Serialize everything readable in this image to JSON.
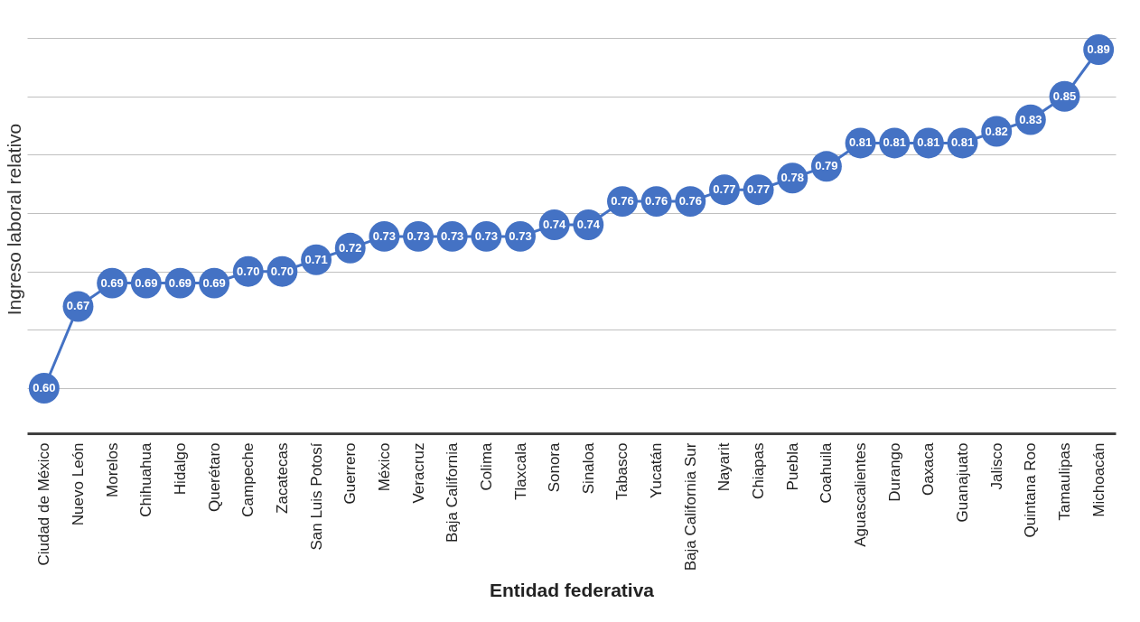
{
  "chart_data": {
    "type": "line",
    "xlabel": "Entidad federativa",
    "ylabel": "Ingreso laboral relativo",
    "categories": [
      "Ciudad de México",
      "Nuevo León",
      "Morelos",
      "Chihuahua",
      "Hidalgo",
      "Querétaro",
      "Campeche",
      "Zacatecas",
      "San Luis Potosí",
      "Guerrero",
      "México",
      "Veracruz",
      "Baja California",
      "Colima",
      "Tlaxcala",
      "Sonora",
      "Sinaloa",
      "Tabasco",
      "Yucatán",
      "Baja California Sur",
      "Nayarit",
      "Chiapas",
      "Puebla",
      "Coahuila",
      "Aguascalientes",
      "Durango",
      "Oaxaca",
      "Guanajuato",
      "Jalisco",
      "Quintana Roo",
      "Tamaulipas",
      "Michoacán"
    ],
    "series": [
      {
        "color": "#4472c4",
        "values": [
          0.6,
          0.67,
          0.69,
          0.69,
          0.69,
          0.69,
          0.7,
          0.7,
          0.71,
          0.72,
          0.73,
          0.73,
          0.73,
          0.73,
          0.73,
          0.74,
          0.74,
          0.76,
          0.76,
          0.76,
          0.77,
          0.77,
          0.78,
          0.79,
          0.81,
          0.81,
          0.81,
          0.81,
          0.82,
          0.83,
          0.85,
          0.89
        ],
        "value_labels": [
          "0.60",
          "0.67",
          "0.69",
          "0.69",
          "0.69",
          "0.69",
          "0.70",
          "0.70",
          "0.71",
          "0.72",
          "0.73",
          "0.73",
          "0.73",
          "0.73",
          "0.73",
          "0.74",
          "0.74",
          "0.76",
          "0.76",
          "0.76",
          "0.77",
          "0.77",
          "0.78",
          "0.79",
          "0.81",
          "0.81",
          "0.81",
          "0.81",
          "0.82",
          "0.83",
          "0.85",
          "0.89"
        ]
      }
    ],
    "tick_labels": "x",
    "grid": "y",
    "marker": "circle",
    "line_style": "solid"
  }
}
